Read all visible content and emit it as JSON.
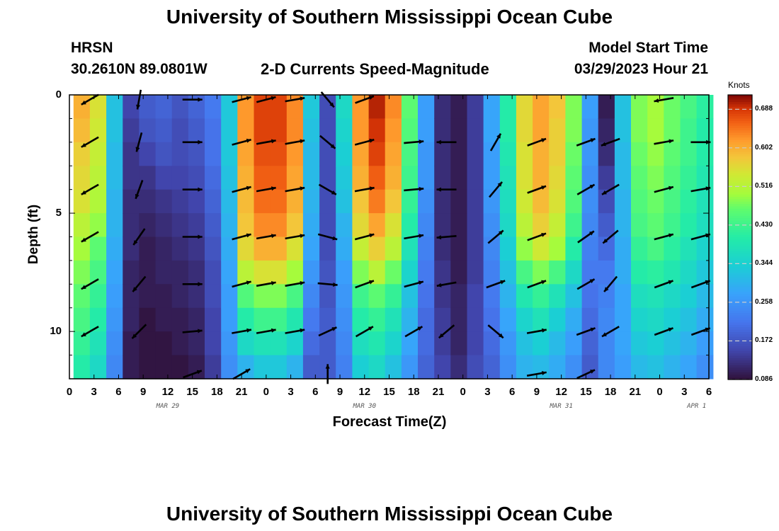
{
  "header": {
    "title": "University of Southern Mississippi Ocean Cube",
    "station": "HRSN",
    "location": "30.2610N  89.0801W",
    "chart_title": "2-D Currents Speed-Magnitude",
    "model_start_label": "Model Start Time",
    "model_start_value": "03/29/2023 Hour 21"
  },
  "footer": {
    "title": "University of Southern Mississippi Ocean Cube"
  },
  "chart_data": {
    "type": "heatmap",
    "title": "2-D Currents Speed-Magnitude",
    "xlabel": "Forecast Time(Z)",
    "ylabel": "Depth (ft)",
    "x_tick_labels": [
      "0",
      "3",
      "6",
      "9",
      "12",
      "15",
      "18",
      "21",
      "0",
      "3",
      "6",
      "9",
      "12",
      "15",
      "18",
      "21",
      "0",
      "3",
      "6",
      "9",
      "12",
      "15",
      "18",
      "21",
      "0",
      "3",
      "6"
    ],
    "x_range_hours": [
      0,
      78
    ],
    "y_ticks": [
      0,
      5,
      10
    ],
    "y_tick_labels": [
      "0",
      "5",
      "10"
    ],
    "y_range_ft": [
      0,
      12
    ],
    "date_labels": [
      {
        "text": "MAR 29",
        "hour": 12
      },
      {
        "text": "MAR 30",
        "hour": 36
      },
      {
        "text": "MAR 31",
        "hour": 60
      },
      {
        "text": "APR 1",
        "hour": 76.5
      }
    ],
    "colorbar": {
      "units": "Knots",
      "min": 0.086,
      "max": 0.72,
      "tick_values": [
        0.688,
        0.602,
        0.516,
        0.43,
        0.344,
        0.258,
        0.172,
        0.086
      ],
      "tick_labels": [
        "0.688",
        "0.602",
        "0.516",
        "0.430",
        "0.344",
        "0.258",
        "0.172",
        "0.086"
      ]
    },
    "columns": [
      {
        "hour": 1.5,
        "speeds": [
          0.6,
          0.59,
          0.57,
          0.56,
          0.55,
          0.52,
          0.5,
          0.48,
          0.46,
          0.44,
          0.42,
          0.4
        ]
      },
      {
        "hour": 3.5,
        "speeds": [
          0.55,
          0.54,
          0.53,
          0.52,
          0.51,
          0.49,
          0.46,
          0.44,
          0.42,
          0.4,
          0.38,
          0.36
        ]
      },
      {
        "hour": 5.5,
        "speeds": [
          0.32,
          0.32,
          0.31,
          0.31,
          0.3,
          0.3,
          0.29,
          0.28,
          0.27,
          0.26,
          0.25,
          0.24
        ]
      },
      {
        "hour": 7.5,
        "speeds": [
          0.15,
          0.14,
          0.13,
          0.13,
          0.12,
          0.12,
          0.12,
          0.11,
          0.11,
          0.11,
          0.1,
          0.1
        ]
      },
      {
        "hour": 9.5,
        "speeds": [
          0.18,
          0.17,
          0.15,
          0.13,
          0.12,
          0.11,
          0.1,
          0.1,
          0.1,
          0.09,
          0.09,
          0.09
        ]
      },
      {
        "hour": 11.5,
        "speeds": [
          0.19,
          0.18,
          0.17,
          0.15,
          0.13,
          0.12,
          0.11,
          0.11,
          0.1,
          0.1,
          0.09,
          0.09
        ]
      },
      {
        "hour": 13.5,
        "speeds": [
          0.17,
          0.16,
          0.16,
          0.15,
          0.14,
          0.13,
          0.12,
          0.11,
          0.11,
          0.1,
          0.1,
          0.09
        ]
      },
      {
        "hour": 15.5,
        "speeds": [
          0.19,
          0.18,
          0.17,
          0.16,
          0.15,
          0.14,
          0.13,
          0.12,
          0.12,
          0.11,
          0.11,
          0.1
        ]
      },
      {
        "hour": 17.5,
        "speeds": [
          0.22,
          0.21,
          0.21,
          0.2,
          0.19,
          0.18,
          0.17,
          0.16,
          0.16,
          0.15,
          0.15,
          0.14
        ]
      },
      {
        "hour": 19.5,
        "speeds": [
          0.33,
          0.33,
          0.33,
          0.32,
          0.31,
          0.3,
          0.29,
          0.28,
          0.27,
          0.27,
          0.26,
          0.25
        ]
      },
      {
        "hour": 21.5,
        "speeds": [
          0.62,
          0.62,
          0.61,
          0.6,
          0.59,
          0.58,
          0.56,
          0.52,
          0.45,
          0.4,
          0.36,
          0.3
        ]
      },
      {
        "hour": 23.5,
        "speeds": [
          0.68,
          0.68,
          0.67,
          0.66,
          0.65,
          0.63,
          0.6,
          0.55,
          0.48,
          0.43,
          0.38,
          0.33
        ]
      },
      {
        "hour": 25.5,
        "speeds": [
          0.68,
          0.68,
          0.67,
          0.66,
          0.65,
          0.63,
          0.6,
          0.55,
          0.48,
          0.43,
          0.38,
          0.33
        ]
      },
      {
        "hour": 27.5,
        "speeds": [
          0.63,
          0.63,
          0.62,
          0.61,
          0.6,
          0.58,
          0.55,
          0.5,
          0.44,
          0.39,
          0.35,
          0.3
        ]
      },
      {
        "hour": 29.5,
        "speeds": [
          0.33,
          0.32,
          0.31,
          0.31,
          0.3,
          0.29,
          0.28,
          0.26,
          0.24,
          0.22,
          0.2,
          0.18
        ]
      },
      {
        "hour": 31.5,
        "speeds": [
          0.16,
          0.16,
          0.16,
          0.16,
          0.16,
          0.16,
          0.16,
          0.17,
          0.17,
          0.18,
          0.18,
          0.18
        ]
      },
      {
        "hour": 33.5,
        "speeds": [
          0.36,
          0.35,
          0.34,
          0.33,
          0.32,
          0.3,
          0.29,
          0.27,
          0.26,
          0.25,
          0.24,
          0.23
        ]
      },
      {
        "hour": 35.5,
        "speeds": [
          0.62,
          0.62,
          0.61,
          0.6,
          0.58,
          0.56,
          0.53,
          0.48,
          0.43,
          0.4,
          0.37,
          0.34
        ]
      },
      {
        "hour": 37.5,
        "speeds": [
          0.7,
          0.69,
          0.68,
          0.66,
          0.64,
          0.61,
          0.57,
          0.52,
          0.46,
          0.42,
          0.39,
          0.36
        ]
      },
      {
        "hour": 39.5,
        "speeds": [
          0.63,
          0.62,
          0.61,
          0.6,
          0.58,
          0.55,
          0.52,
          0.47,
          0.42,
          0.38,
          0.35,
          0.32
        ]
      },
      {
        "hour": 41.5,
        "speeds": [
          0.46,
          0.45,
          0.44,
          0.43,
          0.42,
          0.4,
          0.38,
          0.35,
          0.32,
          0.3,
          0.28,
          0.26
        ]
      },
      {
        "hour": 43.5,
        "speeds": [
          0.27,
          0.27,
          0.26,
          0.26,
          0.25,
          0.24,
          0.23,
          0.22,
          0.21,
          0.2,
          0.2,
          0.19
        ]
      },
      {
        "hour": 45.5,
        "speeds": [
          0.12,
          0.12,
          0.12,
          0.12,
          0.12,
          0.12,
          0.12,
          0.13,
          0.13,
          0.14,
          0.14,
          0.15
        ]
      },
      {
        "hour": 47.5,
        "speeds": [
          0.1,
          0.1,
          0.1,
          0.1,
          0.1,
          0.1,
          0.1,
          0.1,
          0.11,
          0.11,
          0.11,
          0.12
        ]
      },
      {
        "hour": 49.5,
        "speeds": [
          0.14,
          0.14,
          0.14,
          0.14,
          0.14,
          0.14,
          0.14,
          0.14,
          0.15,
          0.15,
          0.15,
          0.16
        ]
      },
      {
        "hour": 51.5,
        "speeds": [
          0.28,
          0.28,
          0.27,
          0.27,
          0.26,
          0.25,
          0.24,
          0.23,
          0.22,
          0.21,
          0.2,
          0.19
        ]
      },
      {
        "hour": 53.5,
        "speeds": [
          0.4,
          0.4,
          0.39,
          0.38,
          0.37,
          0.36,
          0.34,
          0.32,
          0.3,
          0.28,
          0.26,
          0.25
        ]
      },
      {
        "hour": 55.5,
        "speeds": [
          0.56,
          0.56,
          0.55,
          0.55,
          0.54,
          0.52,
          0.49,
          0.44,
          0.39,
          0.35,
          0.32,
          0.3
        ]
      },
      {
        "hour": 57.5,
        "speeds": [
          0.61,
          0.61,
          0.6,
          0.6,
          0.59,
          0.57,
          0.54,
          0.48,
          0.42,
          0.38,
          0.34,
          0.31
        ]
      },
      {
        "hour": 59.5,
        "speeds": [
          0.58,
          0.57,
          0.57,
          0.56,
          0.55,
          0.53,
          0.5,
          0.44,
          0.38,
          0.34,
          0.31,
          0.29
        ]
      },
      {
        "hour": 61.5,
        "speeds": [
          0.48,
          0.48,
          0.47,
          0.46,
          0.45,
          0.43,
          0.4,
          0.36,
          0.32,
          0.29,
          0.27,
          0.25
        ]
      },
      {
        "hour": 63.5,
        "speeds": [
          0.27,
          0.26,
          0.26,
          0.25,
          0.25,
          0.24,
          0.23,
          0.22,
          0.21,
          0.2,
          0.19,
          0.18
        ]
      },
      {
        "hour": 65.5,
        "speeds": [
          0.1,
          0.11,
          0.12,
          0.14,
          0.16,
          0.18,
          0.2,
          0.22,
          0.23,
          0.24,
          0.24,
          0.24
        ]
      },
      {
        "hour": 67.5,
        "speeds": [
          0.32,
          0.32,
          0.31,
          0.31,
          0.3,
          0.3,
          0.29,
          0.29,
          0.28,
          0.28,
          0.28,
          0.27
        ]
      },
      {
        "hour": 69.5,
        "speeds": [
          0.48,
          0.48,
          0.47,
          0.46,
          0.45,
          0.44,
          0.42,
          0.4,
          0.37,
          0.35,
          0.33,
          0.31
        ]
      },
      {
        "hour": 71.5,
        "speeds": [
          0.5,
          0.5,
          0.49,
          0.48,
          0.47,
          0.46,
          0.44,
          0.41,
          0.38,
          0.36,
          0.34,
          0.32
        ]
      },
      {
        "hour": 73.5,
        "speeds": [
          0.47,
          0.47,
          0.46,
          0.45,
          0.44,
          0.43,
          0.41,
          0.39,
          0.36,
          0.34,
          0.32,
          0.3
        ]
      },
      {
        "hour": 75.5,
        "speeds": [
          0.44,
          0.43,
          0.43,
          0.42,
          0.41,
          0.4,
          0.38,
          0.36,
          0.34,
          0.32,
          0.3,
          0.28
        ]
      },
      {
        "hour": 77.5,
        "speeds": [
          0.41,
          0.4,
          0.4,
          0.39,
          0.38,
          0.37,
          0.35,
          0.33,
          0.31,
          0.29,
          0.27,
          0.25
        ]
      }
    ],
    "vector_rows_ft": [
      0.2,
      2.0,
      4.0,
      6.0,
      8.0,
      10.0,
      11.8
    ],
    "vector_cols": [
      {
        "hour": 2.5,
        "angles": [
          210,
          210,
          210,
          210,
          210,
          210,
          null
        ]
      },
      {
        "hour": 8.5,
        "angles": [
          260,
          255,
          250,
          235,
          230,
          225,
          null
        ]
      },
      {
        "hour": 15,
        "angles": [
          0,
          0,
          0,
          0,
          0,
          5,
          20
        ]
      },
      {
        "hour": 21,
        "angles": [
          15,
          15,
          15,
          15,
          15,
          10,
          30
        ]
      },
      {
        "hour": 24,
        "angles": [
          15,
          10,
          10,
          10,
          10,
          10,
          null
        ]
      },
      {
        "hour": 27.5,
        "angles": [
          10,
          10,
          10,
          10,
          10,
          10,
          null
        ]
      },
      {
        "hour": 31.5,
        "angles": [
          310,
          320,
          330,
          345,
          355,
          25,
          90
        ]
      },
      {
        "hour": 36,
        "angles": [
          20,
          15,
          10,
          15,
          20,
          30,
          null
        ]
      },
      {
        "hour": 42,
        "angles": [
          null,
          5,
          5,
          10,
          15,
          30,
          null
        ]
      },
      {
        "hour": 46,
        "angles": [
          null,
          180,
          180,
          185,
          190,
          220,
          null
        ]
      },
      {
        "hour": 52,
        "angles": [
          null,
          60,
          50,
          40,
          20,
          320,
          null
        ]
      },
      {
        "hour": 57,
        "angles": [
          null,
          20,
          20,
          20,
          20,
          10,
          10
        ]
      },
      {
        "hour": 63,
        "angles": [
          null,
          20,
          30,
          35,
          30,
          20,
          25
        ]
      },
      {
        "hour": 66,
        "angles": [
          null,
          200,
          210,
          220,
          230,
          210,
          null
        ]
      },
      {
        "hour": 72.5,
        "angles": [
          190,
          10,
          15,
          15,
          20,
          20,
          null
        ]
      },
      {
        "hour": 77,
        "angles": [
          null,
          0,
          10,
          15,
          20,
          20,
          null
        ]
      }
    ]
  }
}
